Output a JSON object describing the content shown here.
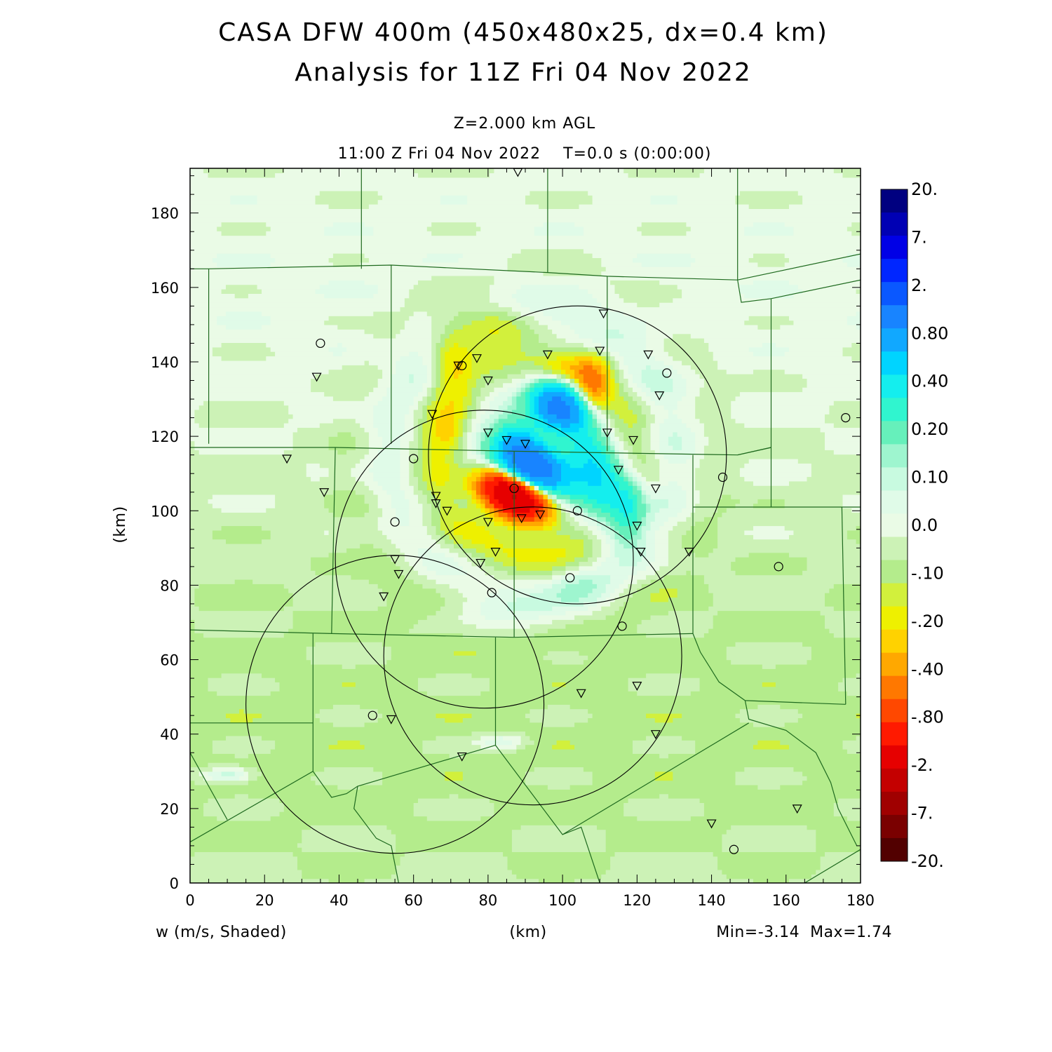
{
  "chart_data": {
    "type": "heatmap",
    "title": "CASA DFW 400m (450x480x25, dx=0.4 km)",
    "subtitle": "Analysis for 11Z Fri 04 Nov 2022",
    "level_label": "Z=2.000 km AGL",
    "time_label": "11:00 Z Fri 04 Nov 2022    T=0.0 s (0:00:00)",
    "xlabel": "(km)",
    "ylabel": "(km)",
    "field_label": "w (m/s, Shaded)",
    "minmax_label": "Min=-3.14  Max=1.74",
    "xlim": [
      0,
      180
    ],
    "ylim": [
      0,
      192
    ],
    "x_ticks": [
      0,
      20,
      40,
      60,
      80,
      100,
      120,
      140,
      160,
      180
    ],
    "y_ticks": [
      0,
      20,
      40,
      60,
      80,
      100,
      120,
      140,
      160,
      180
    ],
    "colorbar": {
      "labels": [
        "20.",
        "7.",
        "2.",
        "0.80",
        "0.40",
        "0.20",
        "0.10",
        "0.0",
        "-.10",
        "-.20",
        "-.40",
        "-.80",
        "-2.",
        "-7.",
        "-20."
      ],
      "colors": [
        "#000080",
        "#0000b4",
        "#0000e6",
        "#0026ff",
        "#0a58ff",
        "#1884ff",
        "#11a8ff",
        "#00d4ff",
        "#14eeee",
        "#30f5cf",
        "#66f0bb",
        "#9ef5cf",
        "#c8fae0",
        "#e0fbe8",
        "#eafbe6",
        "#ccf2b6",
        "#b4ec8c",
        "#d2f03c",
        "#eef000",
        "#ffd200",
        "#ffa800",
        "#ff7800",
        "#ff4800",
        "#ff1a00",
        "#e60000",
        "#c40000",
        "#a00000",
        "#7a0000",
        "#520000"
      ]
    },
    "range_rings": [
      {
        "x": 104,
        "y": 115,
        "r": 40
      },
      {
        "x": 79,
        "y": 87,
        "r": 40
      },
      {
        "x": 92,
        "y": 61,
        "r": 40
      },
      {
        "x": 55,
        "y": 48,
        "r": 40
      }
    ],
    "features": [
      {
        "x": 92,
        "y": 112,
        "amp": 1.8,
        "sx": 6,
        "sy": 4,
        "rot": -30
      },
      {
        "x": 87,
        "y": 104,
        "amp": -2.2,
        "sx": 6,
        "sy": 3.5,
        "rot": -25
      },
      {
        "x": 99,
        "y": 128,
        "amp": 1.3,
        "sx": 5,
        "sy": 4,
        "rot": -30
      },
      {
        "x": 110,
        "y": 108,
        "amp": 0.6,
        "sx": 5,
        "sy": 10,
        "rot": 20
      },
      {
        "x": 88,
        "y": 118,
        "amp": 0.5,
        "sx": 4,
        "sy": 4,
        "rot": 0
      },
      {
        "x": 118,
        "y": 102,
        "amp": 0.3,
        "sx": 3,
        "sy": 6,
        "rot": 0
      },
      {
        "x": 105,
        "y": 80,
        "amp": 0.12,
        "sx": 6,
        "sy": 4,
        "rot": 0
      },
      {
        "x": 80,
        "y": 150,
        "amp": -0.25,
        "sx": 8,
        "sy": 4,
        "rot": 0
      },
      {
        "x": 70,
        "y": 140,
        "amp": -0.2,
        "sx": 4,
        "sy": 7,
        "rot": 0
      },
      {
        "x": 108,
        "y": 133,
        "amp": -0.35,
        "sx": 3,
        "sy": 5,
        "rot": 0
      },
      {
        "x": 103,
        "y": 138,
        "amp": -0.2,
        "sx": 6,
        "sy": 3,
        "rot": 0
      },
      {
        "x": 70,
        "y": 120,
        "amp": -0.15,
        "sx": 4,
        "sy": 4,
        "rot": 0
      },
      {
        "x": 10,
        "y": 29,
        "amp": 0.22,
        "sx": 5,
        "sy": 1.5,
        "rot": 0
      },
      {
        "x": 84,
        "y": 38,
        "amp": 0.15,
        "sx": 5,
        "sy": 1.5,
        "rot": 0
      },
      {
        "x": 88,
        "y": 72,
        "amp": 0.1,
        "sx": 12,
        "sy": 4,
        "rot": 0
      }
    ],
    "stations_circle": [
      [
        35,
        145
      ],
      [
        60,
        114
      ],
      [
        55,
        97
      ],
      [
        87,
        106
      ],
      [
        73,
        139
      ],
      [
        102,
        82
      ],
      [
        104,
        100
      ],
      [
        81,
        78
      ],
      [
        116,
        69
      ],
      [
        128,
        137
      ],
      [
        143,
        109
      ],
      [
        49,
        45
      ],
      [
        158,
        85
      ],
      [
        176,
        125
      ],
      [
        146,
        9
      ]
    ],
    "stations_triangle": [
      [
        88,
        191
      ],
      [
        34,
        136
      ],
      [
        26,
        114
      ],
      [
        36,
        105
      ],
      [
        65,
        126
      ],
      [
        72,
        139
      ],
      [
        77,
        141
      ],
      [
        80,
        135
      ],
      [
        80,
        121
      ],
      [
        85,
        119
      ],
      [
        90,
        118
      ],
      [
        96,
        142
      ],
      [
        110,
        143
      ],
      [
        111,
        153
      ],
      [
        123,
        142
      ],
      [
        126,
        131
      ],
      [
        112,
        121
      ],
      [
        119,
        119
      ],
      [
        115,
        111
      ],
      [
        125,
        106
      ],
      [
        66,
        104
      ],
      [
        66,
        102
      ],
      [
        69,
        100
      ],
      [
        80,
        97
      ],
      [
        89,
        98
      ],
      [
        94,
        99
      ],
      [
        82,
        89
      ],
      [
        78,
        86
      ],
      [
        120,
        96
      ],
      [
        121,
        89
      ],
      [
        134,
        89
      ],
      [
        55,
        87
      ],
      [
        56,
        83
      ],
      [
        52,
        77
      ],
      [
        54,
        44
      ],
      [
        73,
        34
      ],
      [
        105,
        51
      ],
      [
        120,
        53
      ],
      [
        125,
        40
      ],
      [
        140,
        16
      ],
      [
        163,
        20
      ]
    ],
    "county_lines": [
      [
        [
          46,
          192
        ],
        [
          46,
          165
        ]
      ],
      [
        [
          96,
          192
        ],
        [
          96,
          164
        ]
      ],
      [
        [
          0,
          165
        ],
        [
          5,
          165
        ],
        [
          54,
          166
        ],
        [
          96,
          164
        ],
        [
          112,
          163
        ],
        [
          147,
          162
        ],
        [
          180,
          169
        ]
      ],
      [
        [
          147,
          162
        ],
        [
          147,
          192
        ]
      ],
      [
        [
          147,
          162
        ],
        [
          148,
          156
        ],
        [
          156,
          157
        ],
        [
          180,
          162
        ]
      ],
      [
        [
          5,
          165
        ],
        [
          5,
          118
        ]
      ],
      [
        [
          54,
          166
        ],
        [
          54,
          118
        ]
      ],
      [
        [
          112,
          163
        ],
        [
          112,
          116
        ]
      ],
      [
        [
          156,
          157
        ],
        [
          156,
          117
        ]
      ],
      [
        [
          0,
          117
        ],
        [
          39,
          117
        ],
        [
          87,
          116
        ],
        [
          147,
          115
        ],
        [
          156,
          117
        ]
      ],
      [
        [
          39,
          117
        ],
        [
          38,
          67
        ]
      ],
      [
        [
          87,
          116
        ],
        [
          87,
          66
        ]
      ],
      [
        [
          135,
          115
        ],
        [
          135,
          67
        ]
      ],
      [
        [
          147,
          115
        ],
        [
          156,
          117
        ]
      ],
      [
        [
          156,
          117
        ],
        [
          156,
          101
        ],
        [
          180,
          101
        ]
      ],
      [
        [
          135,
          101
        ],
        [
          156,
          101
        ]
      ],
      [
        [
          175,
          101
        ],
        [
          176,
          48
        ]
      ],
      [
        [
          0,
          68
        ],
        [
          38,
          67
        ],
        [
          87,
          66
        ],
        [
          135,
          67
        ]
      ],
      [
        [
          33,
          67
        ],
        [
          33,
          30
        ],
        [
          0,
          11
        ]
      ],
      [
        [
          82,
          66
        ],
        [
          82,
          37
        ]
      ],
      [
        [
          0,
          43
        ],
        [
          33,
          43
        ]
      ],
      [
        [
          0,
          35
        ],
        [
          10,
          17
        ]
      ],
      [
        [
          33,
          30
        ],
        [
          38,
          23
        ],
        [
          42,
          24
        ],
        [
          45,
          26
        ],
        [
          82,
          37
        ]
      ],
      [
        [
          135,
          67
        ],
        [
          137,
          62
        ],
        [
          142,
          54
        ],
        [
          149,
          49
        ],
        [
          176,
          48
        ]
      ],
      [
        [
          149,
          49
        ],
        [
          150,
          44
        ],
        [
          160,
          41
        ],
        [
          168,
          35
        ],
        [
          172,
          27
        ],
        [
          174,
          20
        ],
        [
          179,
          10
        ]
      ],
      [
        [
          82,
          37
        ],
        [
          100,
          13
        ],
        [
          150,
          43
        ]
      ],
      [
        [
          45,
          26
        ],
        [
          44,
          20
        ],
        [
          50,
          12
        ],
        [
          54,
          10
        ],
        [
          56,
          0
        ]
      ],
      [
        [
          100,
          13
        ],
        [
          105,
          15
        ],
        [
          110,
          0
        ]
      ],
      [
        [
          165,
          0
        ],
        [
          180,
          9
        ]
      ]
    ]
  }
}
